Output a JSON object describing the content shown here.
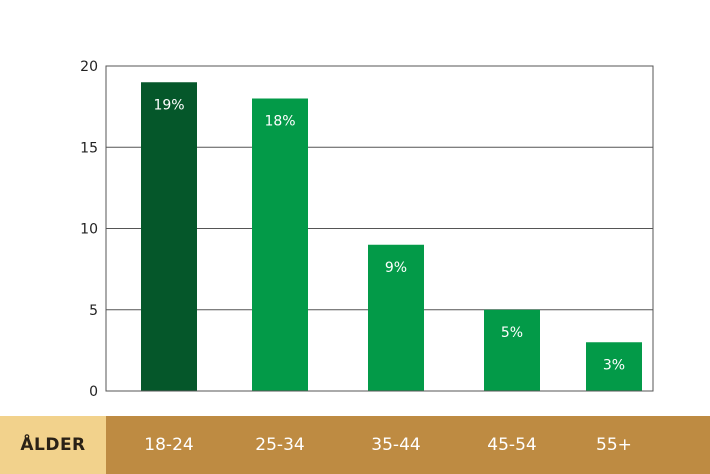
{
  "chart_data": {
    "type": "bar",
    "categories": [
      "18-24",
      "25-34",
      "35-44",
      "45-54",
      "55+"
    ],
    "values": [
      19,
      18,
      9,
      5,
      3
    ],
    "data_labels": [
      "19%",
      "18%",
      "9%",
      "5%",
      "3%"
    ],
    "ylim": [
      0,
      20
    ],
    "yticks": [
      0,
      5,
      10,
      15,
      20
    ],
    "xlabel": "ÅLDER",
    "grid": true,
    "bar_colors": [
      "#05572a",
      "#039a48",
      "#039a48",
      "#039a48",
      "#039a48"
    ]
  }
}
